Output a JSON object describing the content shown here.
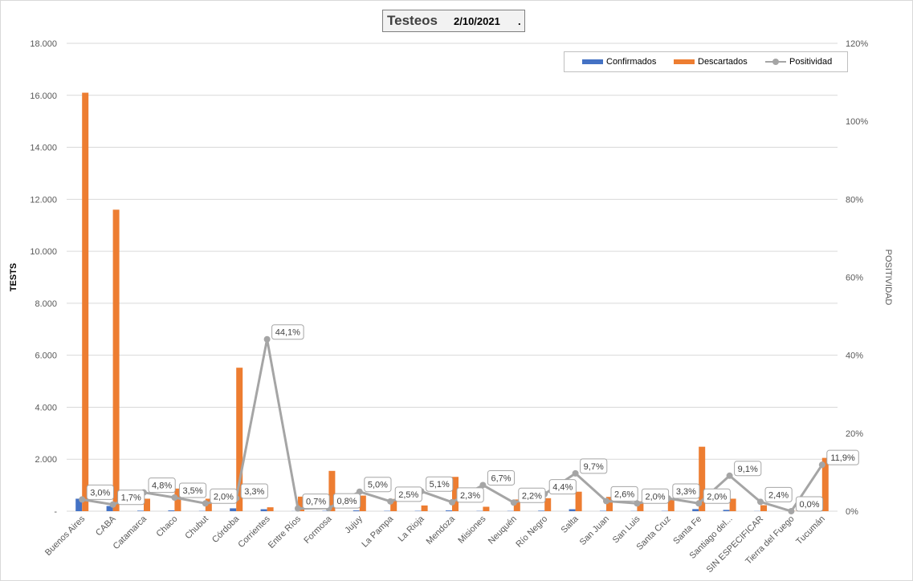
{
  "title": {
    "main": "Testeos",
    "date": "2/10/2021",
    "dot": "."
  },
  "legend": {
    "confirmados": "Confirmados",
    "descartados": "Descartados",
    "positividad": "Positividad"
  },
  "colors": {
    "confirmados": "#4472c4",
    "descartados": "#ed7d31",
    "positividad": "#a5a5a5"
  },
  "chart_data": {
    "type": "bar",
    "ylabel": "TESTS",
    "y2label": "POSITIVIDAD",
    "ylim": [
      0,
      18000
    ],
    "y2lim": [
      0,
      120
    ],
    "yticks": [
      "-",
      "2.000",
      "4.000",
      "6.000",
      "8.000",
      "10.000",
      "12.000",
      "14.000",
      "16.000",
      "18.000"
    ],
    "y2ticks": [
      "0%",
      "20%",
      "40%",
      "60%",
      "80%",
      "100%",
      "120%"
    ],
    "legend_position": "top-right",
    "grid": true,
    "categories": [
      "Buenos Aires",
      "CABA",
      "Catamarca",
      "Chaco",
      "Chubut",
      "Córdoba",
      "Corrientes",
      "Entre Ríos",
      "Formosa",
      "Jujuy",
      "La Pampa",
      "La Rioja",
      "Mendoza",
      "Misiones",
      "Neuquén",
      "Río Negro",
      "Salta",
      "San Juan",
      "San Luis",
      "Santa Cruz",
      "Santa Fe",
      "Santiago del...",
      "SIN ESPECIFICAR",
      "Tierra del Fuego",
      "Tucumán"
    ],
    "series": [
      {
        "name": "Confirmados",
        "type": "bar",
        "values": [
          480,
          200,
          20,
          30,
          10,
          110,
          75,
          4,
          13,
          30,
          12,
          12,
          30,
          10,
          10,
          20,
          75,
          15,
          8,
          10,
          80,
          50,
          6,
          0,
          260
        ]
      },
      {
        "name": "Descartados",
        "type": "bar",
        "values": [
          16100,
          11600,
          480,
          870,
          480,
          5520,
          150,
          560,
          1550,
          600,
          470,
          220,
          1320,
          170,
          450,
          500,
          750,
          550,
          380,
          480,
          2480,
          480,
          230,
          5,
          2050
        ]
      },
      {
        "name": "Positividad",
        "type": "line",
        "values": [
          3.0,
          1.7,
          4.8,
          3.5,
          2.0,
          3.3,
          44.1,
          0.7,
          0.8,
          5.0,
          2.5,
          5.1,
          2.3,
          6.7,
          2.2,
          4.4,
          9.7,
          2.6,
          2.0,
          3.3,
          2.0,
          9.1,
          2.4,
          0.0,
          11.9
        ],
        "labels": [
          "3,0%",
          "1,7%",
          "4,8%",
          "3,5%",
          "2,0%",
          "3,3%",
          "44,1%",
          "0,7%",
          "0,8%",
          "5,0%",
          "2,5%",
          "5,1%",
          "2,3%",
          "6,7%",
          "2,2%",
          "4,4%",
          "9,7%",
          "2,6%",
          "2,0%",
          "3,3%",
          "2,0%",
          "9,1%",
          "2,4%",
          "0,0%",
          "11,9%"
        ]
      }
    ]
  }
}
